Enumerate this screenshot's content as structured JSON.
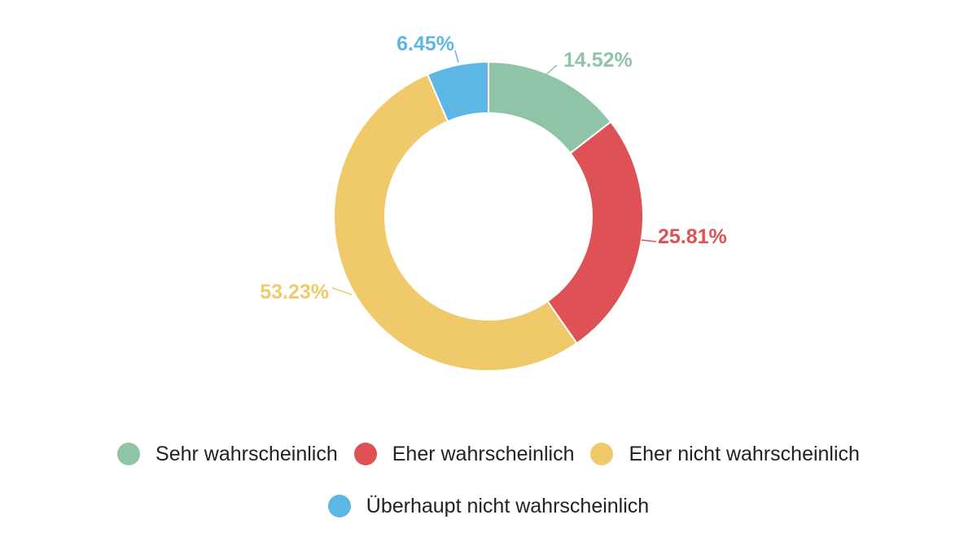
{
  "chart_data": {
    "type": "pie",
    "donut": true,
    "title": "",
    "categories": [
      "Sehr wahrscheinlich",
      "Eher wahrscheinlich",
      "Eher nicht wahrscheinlich",
      "Überhaupt nicht wahrscheinlich"
    ],
    "values": [
      14.52,
      25.81,
      53.23,
      6.45
    ],
    "labels": [
      "14.52%",
      "25.81%",
      "53.23%",
      "6.45%"
    ],
    "colors": [
      "#8FC4A8",
      "#DE5255",
      "#F0CA6A",
      "#5DB7E5"
    ],
    "legend_position": "bottom"
  }
}
